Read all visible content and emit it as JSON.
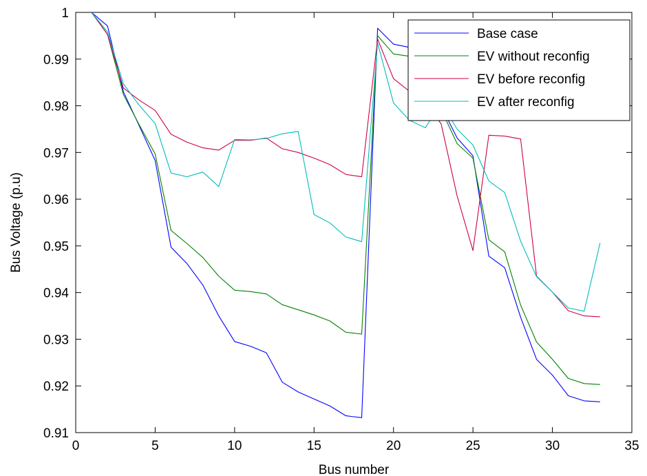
{
  "chart_data": {
    "type": "line",
    "title": "",
    "xlabel": "Bus number",
    "ylabel": "Bus Voltage (p.u)",
    "xlim": [
      0,
      35
    ],
    "ylim": [
      0.91,
      1.0
    ],
    "xticks": [
      0,
      5,
      10,
      15,
      20,
      25,
      30,
      35
    ],
    "xtick_labels": [
      "0",
      "5",
      "10",
      "15",
      "20",
      "25",
      "30",
      "35"
    ],
    "yticks": [
      0.91,
      0.92,
      0.93,
      0.94,
      0.95,
      0.96,
      0.97,
      0.98,
      0.99,
      1.0
    ],
    "ytick_labels": [
      "0.91",
      "0.92",
      "0.93",
      "0.94",
      "0.95",
      "0.96",
      "0.97",
      "0.98",
      "0.99",
      "1"
    ],
    "grid": false,
    "legend_position": "top-right",
    "x": [
      1,
      2,
      3,
      4,
      5,
      6,
      7,
      8,
      9,
      10,
      11,
      12,
      13,
      14,
      15,
      16,
      17,
      18,
      19,
      20,
      21,
      22,
      23,
      24,
      25,
      26,
      27,
      28,
      29,
      30,
      31,
      32,
      33
    ],
    "series": [
      {
        "name": "Base case",
        "color": "#0000ff",
        "values": [
          1.0,
          0.9971,
          0.983,
          0.9757,
          0.9683,
          0.9497,
          0.9462,
          0.9416,
          0.935,
          0.9295,
          0.9285,
          0.9271,
          0.9208,
          0.9187,
          0.9172,
          0.9157,
          0.9136,
          0.9132,
          0.9966,
          0.9932,
          0.9925,
          0.9917,
          0.9799,
          0.9731,
          0.9693,
          0.9478,
          0.9453,
          0.9347,
          0.9257,
          0.9223,
          0.9179,
          0.9168,
          0.9166
        ]
      },
      {
        "name": "EV without reconfig",
        "color": "#008000",
        "values": [
          1.0,
          0.9953,
          0.9824,
          0.9759,
          0.9697,
          0.9533,
          0.9505,
          0.9475,
          0.9435,
          0.9405,
          0.9402,
          0.9397,
          0.9374,
          0.9363,
          0.9352,
          0.9339,
          0.9315,
          0.9311,
          0.995,
          0.9911,
          0.9906,
          0.9899,
          0.9792,
          0.9719,
          0.9688,
          0.9513,
          0.9487,
          0.9373,
          0.9294,
          0.9257,
          0.9216,
          0.9205,
          0.9203
        ]
      },
      {
        "name": "EV before reconfig",
        "color": "#cc0044",
        "values": [
          1.0,
          0.9953,
          0.9838,
          0.9812,
          0.979,
          0.9739,
          0.9722,
          0.971,
          0.9705,
          0.9726,
          0.9726,
          0.9731,
          0.9708,
          0.97,
          0.9688,
          0.9674,
          0.9653,
          0.9648,
          0.9943,
          0.9858,
          0.9831,
          0.981,
          0.9761,
          0.9607,
          0.949,
          0.9737,
          0.9735,
          0.9729,
          0.9435,
          0.9401,
          0.9361,
          0.935,
          0.9348
        ]
      },
      {
        "name": "EV after reconfig",
        "color": "#00bbbb",
        "values": [
          1.0,
          0.9958,
          0.9847,
          0.9801,
          0.9762,
          0.9656,
          0.9648,
          0.9658,
          0.9627,
          0.9728,
          0.9727,
          0.973,
          0.974,
          0.9745,
          0.9567,
          0.9549,
          0.9519,
          0.9509,
          0.9935,
          0.9806,
          0.9769,
          0.9753,
          0.9806,
          0.975,
          0.9716,
          0.9639,
          0.9614,
          0.951,
          0.9434,
          0.9401,
          0.9367,
          0.936,
          0.9506
        ]
      }
    ]
  }
}
